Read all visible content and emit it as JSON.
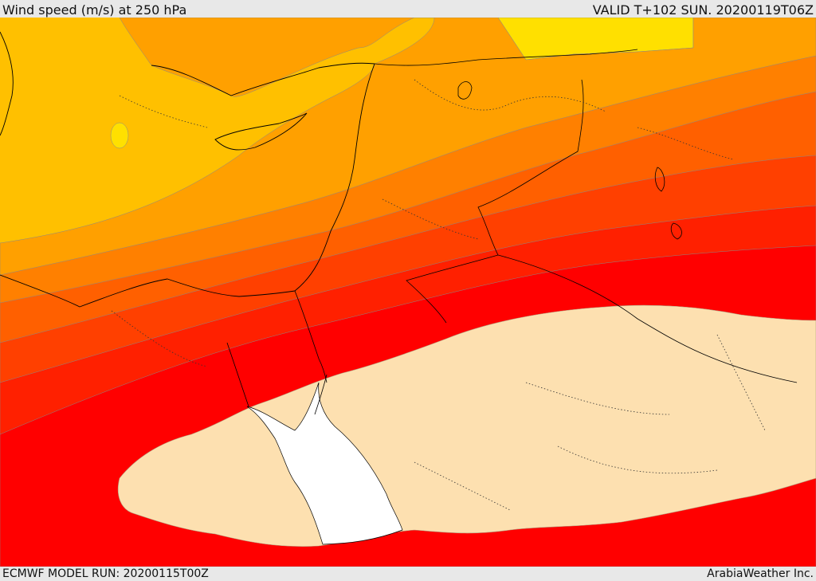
{
  "header": {
    "title": "Wind speed (m/s) at 250 hPa",
    "valid": "VALID T+102 SUN. 20200119T06Z"
  },
  "footer": {
    "model_run": "ECMWF MODEL RUN: 20200115T00Z",
    "credit": "ArabiaWeather Inc."
  },
  "palette": {
    "band_1": "#ffe000",
    "band_2": "#ffc000",
    "band_3": "#ffa000",
    "band_4": "#ff8000",
    "band_5": "#ff6000",
    "band_6": "#ff4000",
    "band_7": "#ff2000",
    "band_8": "#ff0000",
    "core": "#fde0b0",
    "sea_blank": "#ffffff"
  }
}
